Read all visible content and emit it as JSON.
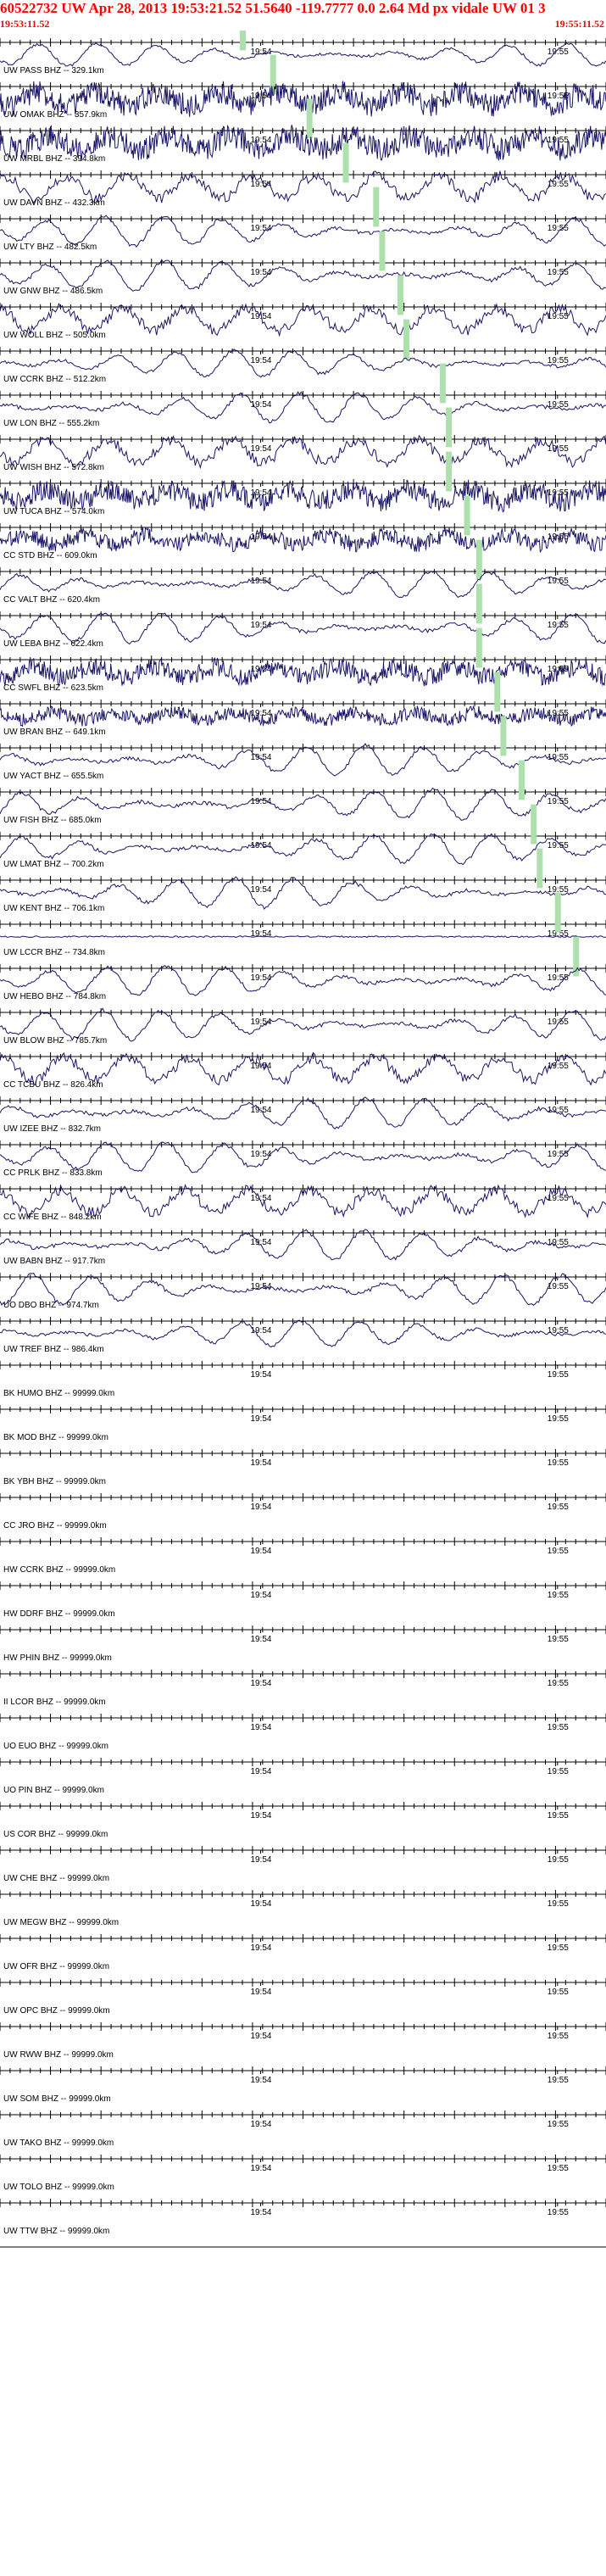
{
  "header": {
    "title": "60522732 UW Apr 28, 2013 19:53:21.52    51.5640 -119.7777   0.0 2.64 Md px vidale UW 01   3",
    "start_time": "19:53:11.52",
    "end_time": "19:55:11.52"
  },
  "tick_labels": [
    "19:54",
    "19:55"
  ],
  "colors": {
    "trace": "#1a1466",
    "pick": "#aee0ae",
    "header": "#ff0000",
    "grid": "#000000"
  },
  "channels": [
    {
      "label": "UW PASS BHZ -- 329.1km",
      "has_data": true,
      "pick": 0.4,
      "style": "low",
      "amp": 0.6
    },
    {
      "label": "UW OMAK BHZ -- 357.9km",
      "has_data": true,
      "pick": 0.45,
      "style": "noisy",
      "amp": 0.9
    },
    {
      "label": "UW MRBL BHZ -- 394.8km",
      "has_data": true,
      "pick": 0.51,
      "style": "noisy",
      "amp": 0.9
    },
    {
      "label": "UW DAVN BHZ -- 432.3km",
      "has_data": true,
      "pick": 0.57,
      "style": "mixed",
      "amp": 0.8
    },
    {
      "label": "UW LTY BHZ -- 482.5km",
      "has_data": true,
      "pick": 0.62,
      "style": "low",
      "amp": 0.8
    },
    {
      "label": "UW GNW BHZ -- 486.5km",
      "has_data": true,
      "pick": 0.63,
      "style": "low",
      "amp": 0.8
    },
    {
      "label": "UW WOLL BHZ -- 505.0km",
      "has_data": true,
      "pick": 0.66,
      "style": "mixed",
      "amp": 0.8
    },
    {
      "label": "UW CCRK BHZ -- 512.2km",
      "has_data": true,
      "pick": 0.67,
      "style": "low",
      "amp": 0.7
    },
    {
      "label": "UW LON BHZ -- 555.2km",
      "has_data": true,
      "pick": 0.73,
      "style": "low",
      "amp": 0.8
    },
    {
      "label": "UW WISH BHZ -- 572.8km",
      "has_data": true,
      "pick": 0.74,
      "style": "mixed",
      "amp": 0.8
    },
    {
      "label": "UW TUCA BHZ -- 574.0km",
      "has_data": true,
      "pick": 0.74,
      "style": "noisy",
      "amp": 0.8
    },
    {
      "label": "CC STD BHZ -- 609.0km",
      "has_data": true,
      "pick": 0.77,
      "style": "noisy",
      "amp": 0.6
    },
    {
      "label": "CC VALT BHZ -- 620.4km",
      "has_data": true,
      "pick": 0.79,
      "style": "low",
      "amp": 0.7
    },
    {
      "label": "UW LEBA BHZ -- 622.4km",
      "has_data": true,
      "pick": 0.79,
      "style": "low",
      "amp": 0.8
    },
    {
      "label": "CC SWFL BHZ -- 623.5km",
      "has_data": true,
      "pick": 0.79,
      "style": "noisy",
      "amp": 0.7
    },
    {
      "label": "UW BRAN BHZ -- 649.1km",
      "has_data": true,
      "pick": 0.82,
      "style": "noisy",
      "amp": 0.5
    },
    {
      "label": "UW YACT BHZ -- 655.5km",
      "has_data": true,
      "pick": 0.83,
      "style": "low",
      "amp": 0.8
    },
    {
      "label": "UW FISH BHZ -- 685.0km",
      "has_data": true,
      "pick": 0.86,
      "style": "low",
      "amp": 0.8
    },
    {
      "label": "UW LMAT BHZ -- 700.2km",
      "has_data": true,
      "pick": 0.88,
      "style": "low",
      "amp": 0.8
    },
    {
      "label": "UW KENT BHZ -- 706.1km",
      "has_data": true,
      "pick": 0.89,
      "style": "low",
      "amp": 0.8
    },
    {
      "label": "UW LCCR BHZ -- 734.8km",
      "has_data": true,
      "pick": 0.92,
      "style": "flat",
      "amp": 0.2
    },
    {
      "label": "UW HEBO BHZ -- 784.8km",
      "has_data": true,
      "pick": 0.95,
      "style": "low",
      "amp": 0.8
    },
    {
      "label": "UW BLOW BHZ -- 785.7km",
      "has_data": true,
      "pick": null,
      "style": "low",
      "amp": 0.8
    },
    {
      "label": "CC TCBU BHZ -- 826.4km",
      "has_data": true,
      "pick": null,
      "style": "mixed",
      "amp": 0.8
    },
    {
      "label": "UW IZEE BHZ -- 832.7km",
      "has_data": true,
      "pick": null,
      "style": "low",
      "amp": 0.8
    },
    {
      "label": "CC PRLK BHZ -- 833.8km",
      "has_data": true,
      "pick": null,
      "style": "low",
      "amp": 0.8
    },
    {
      "label": "CC WIFE BHZ -- 848.2km",
      "has_data": true,
      "pick": null,
      "style": "mixed",
      "amp": 0.8
    },
    {
      "label": "UW BABN BHZ -- 917.7km",
      "has_data": true,
      "pick": null,
      "style": "low",
      "amp": 0.8
    },
    {
      "label": "UO DBO BHZ -- 974.7km",
      "has_data": true,
      "pick": null,
      "style": "low",
      "amp": 0.8
    },
    {
      "label": "UW TREF BHZ -- 986.4km",
      "has_data": true,
      "pick": null,
      "style": "low",
      "amp": 0.7
    },
    {
      "label": "BK HUMO BHZ -- 99999.0km",
      "has_data": false
    },
    {
      "label": "BK MOD BHZ -- 99999.0km",
      "has_data": false
    },
    {
      "label": "BK YBH BHZ -- 99999.0km",
      "has_data": false
    },
    {
      "label": "CC JRO BHZ -- 99999.0km",
      "has_data": false
    },
    {
      "label": "HW CCRK BHZ -- 99999.0km",
      "has_data": false
    },
    {
      "label": "HW DDRF BHZ -- 99999.0km",
      "has_data": false
    },
    {
      "label": "HW PHIN BHZ -- 99999.0km",
      "has_data": false
    },
    {
      "label": "II LCOR BHZ -- 99999.0km",
      "has_data": false
    },
    {
      "label": "UO EUO BHZ -- 99999.0km",
      "has_data": false
    },
    {
      "label": "UO PIN BHZ -- 99999.0km",
      "has_data": false
    },
    {
      "label": "US COR BHZ -- 99999.0km",
      "has_data": false
    },
    {
      "label": "UW CHE BHZ -- 99999.0km",
      "has_data": false
    },
    {
      "label": "UW MEGW BHZ -- 99999.0km",
      "has_data": false
    },
    {
      "label": "UW OFR BHZ -- 99999.0km",
      "has_data": false
    },
    {
      "label": "UW OPC BHZ -- 99999.0km",
      "has_data": false
    },
    {
      "label": "UW RWW BHZ -- 99999.0km",
      "has_data": false
    },
    {
      "label": "UW SOM BHZ -- 99999.0km",
      "has_data": false
    },
    {
      "label": "UW TAKO BHZ -- 99999.0km",
      "has_data": false
    },
    {
      "label": "UW TOLO BHZ -- 99999.0km",
      "has_data": false
    },
    {
      "label": "UW TTW BHZ -- 99999.0km",
      "has_data": false
    }
  ]
}
